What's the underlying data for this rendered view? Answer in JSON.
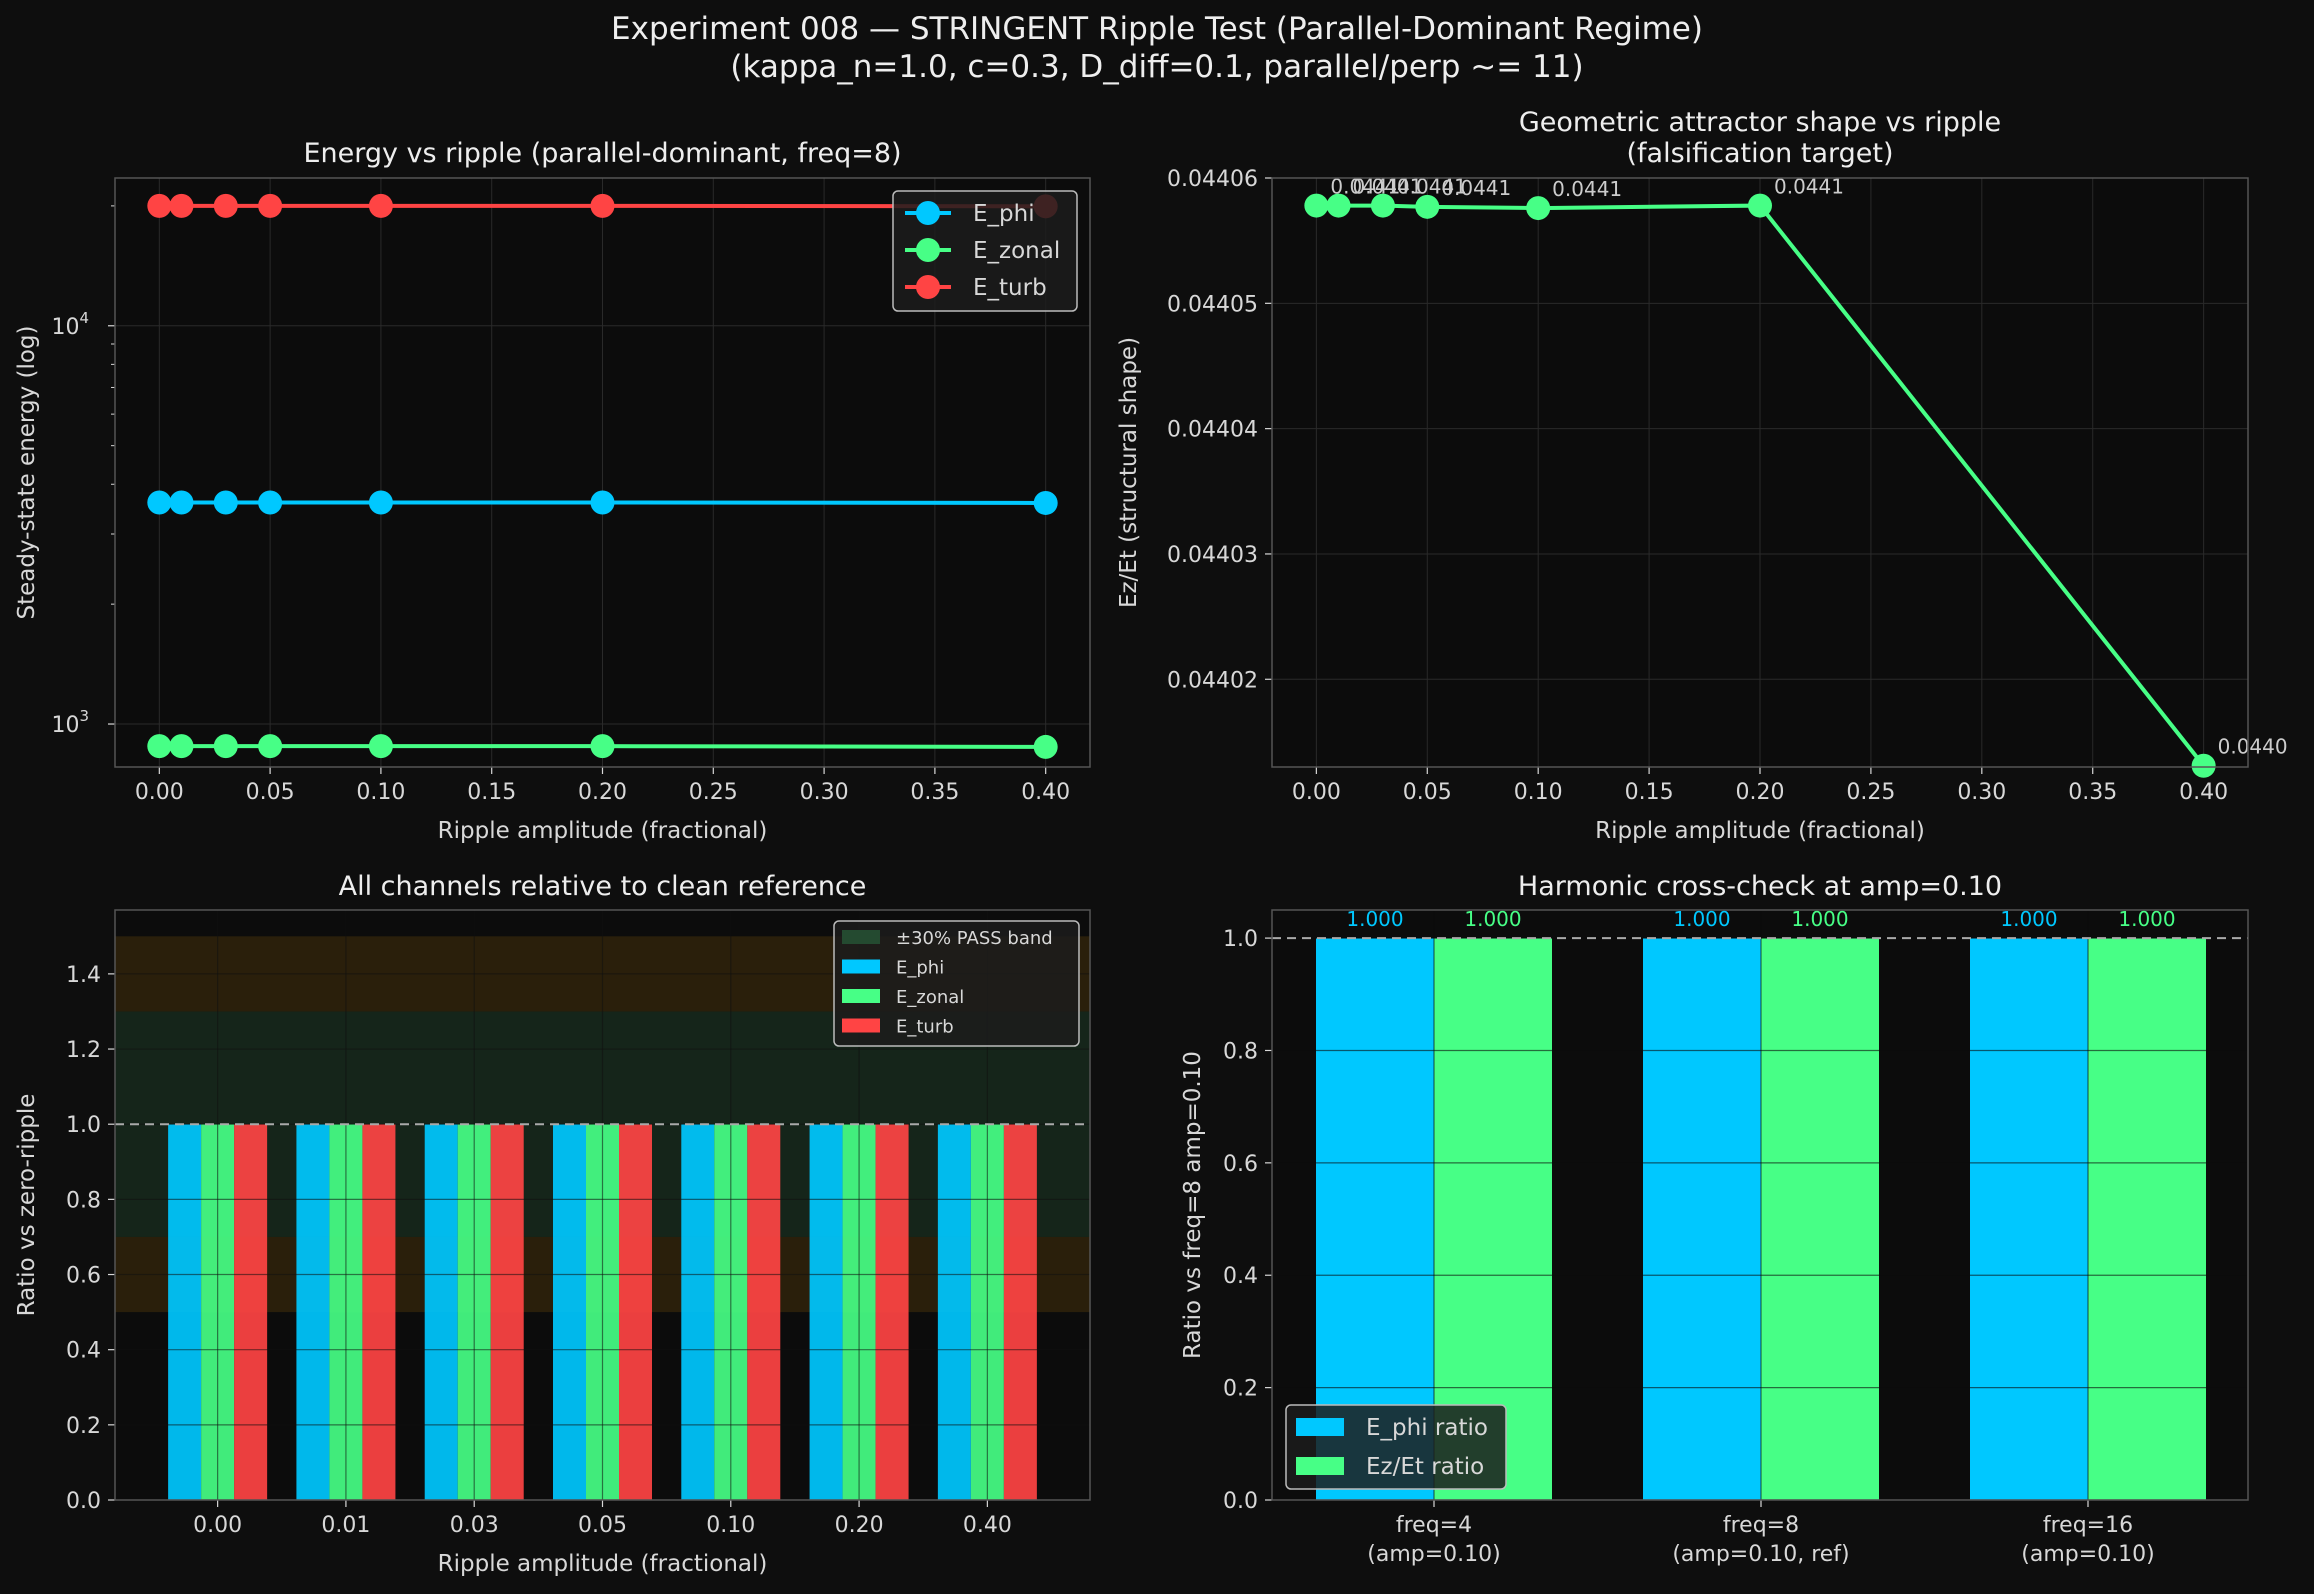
{
  "figure": {
    "title_line1": "Experiment 008 — STRINGENT Ripple Test (Parallel-Dominant Regime)",
    "title_line2": "(kappa_n=1.0, c=0.3, D_diff=0.1, parallel/perp ~= 11)",
    "background": "#0e0e0e",
    "axes_background": "#0c0c0c",
    "colors": {
      "phi": "#00c8ff",
      "zonal": "#47ff86",
      "turb": "#ff4444",
      "ref_line": "#aaaaaa"
    }
  },
  "chart_data": [
    {
      "id": "energy",
      "type": "line",
      "title": "Energy vs ripple (parallel-dominant, freq=8)",
      "xlabel": "Ripple amplitude (fractional)",
      "ylabel": "Steady-state energy (log)",
      "yscale": "log",
      "xlim": [
        -0.02,
        0.42
      ],
      "ylim": [
        780,
        23500
      ],
      "xticks": [
        "0.00",
        "0.05",
        "0.10",
        "0.15",
        "0.20",
        "0.25",
        "0.30",
        "0.35",
        "0.40"
      ],
      "yticks": [
        {
          "base": "10",
          "exp": "3",
          "value": 1000
        },
        {
          "base": "10",
          "exp": "4",
          "value": 10000
        }
      ],
      "x": [
        0.0,
        0.01,
        0.03,
        0.05,
        0.1,
        0.2,
        0.4
      ],
      "series": [
        {
          "name": "E_phi",
          "color": "#00c8ff",
          "values": [
            3600,
            3600,
            3600,
            3600,
            3600,
            3600,
            3590
          ]
        },
        {
          "name": "E_zonal",
          "color": "#47ff86",
          "values": [
            880,
            880,
            880,
            880,
            880,
            880,
            876
          ]
        },
        {
          "name": "E_turb",
          "color": "#ff4444",
          "values": [
            20000,
            20000,
            20000,
            20000,
            20000,
            20000,
            19950
          ]
        }
      ],
      "legend": "top-right",
      "grid": true
    },
    {
      "id": "shape",
      "type": "line",
      "title_line1": "Geometric attractor shape vs ripple",
      "title_line2": "(falsification target)",
      "xlabel": "Ripple amplitude (fractional)",
      "ylabel": "Ez/Et  (structural shape)",
      "xlim": [
        -0.02,
        0.42
      ],
      "ylim": [
        0.044013,
        0.04406
      ],
      "xticks": [
        "0.00",
        "0.05",
        "0.10",
        "0.15",
        "0.20",
        "0.25",
        "0.30",
        "0.35",
        "0.40"
      ],
      "yticks": [
        "0.04402",
        "0.04403",
        "0.04404",
        "0.04405",
        "0.04406"
      ],
      "x": [
        0.0,
        0.01,
        0.03,
        0.05,
        0.1,
        0.2,
        0.4
      ],
      "values": [
        0.0440578,
        0.0440578,
        0.0440578,
        0.0440577,
        0.0440576,
        0.0440578,
        0.0440131
      ],
      "point_labels": [
        "0.0441",
        "0.0441",
        "0.0441",
        "0.0441",
        "0.0441",
        "0.0441",
        "0.0440"
      ],
      "color": "#47ff86",
      "grid": true
    },
    {
      "id": "relative",
      "type": "bar",
      "title": "All channels relative to clean reference",
      "xlabel": "Ripple amplitude (fractional)",
      "ylabel": "Ratio vs zero-ripple",
      "ylim": [
        0,
        1.57
      ],
      "yticks": [
        "0.0",
        "0.2",
        "0.4",
        "0.6",
        "0.8",
        "1.0",
        "1.2",
        "1.4"
      ],
      "categories": [
        "0.00",
        "0.01",
        "0.03",
        "0.05",
        "0.10",
        "0.20",
        "0.40"
      ],
      "series": [
        {
          "name": "E_phi",
          "color": "#00c8ff",
          "values": [
            1,
            1,
            1,
            1,
            1,
            1,
            1
          ]
        },
        {
          "name": "E_zonal",
          "color": "#47ff86",
          "values": [
            1,
            1,
            1,
            1,
            1,
            1,
            1
          ]
        },
        {
          "name": "E_turb",
          "color": "#ff4444",
          "values": [
            1,
            1,
            1,
            1,
            1,
            1,
            1
          ]
        }
      ],
      "pass_band": {
        "label": "±30% PASS band",
        "range": [
          0.7,
          1.3
        ],
        "color": "#1e3a26"
      },
      "warn_bands": [
        [
          0.5,
          0.7
        ],
        [
          1.3,
          1.5
        ]
      ],
      "reference_line": 1.0,
      "legend": "top-right",
      "grid": true
    },
    {
      "id": "harmonic",
      "type": "bar",
      "title": "Harmonic cross-check at amp=0.10",
      "ylabel": "Ratio vs freq=8 amp=0.10",
      "ylim": [
        0,
        1.05
      ],
      "yticks": [
        "0.0",
        "0.2",
        "0.4",
        "0.6",
        "0.8",
        "1.0"
      ],
      "categories": [
        {
          "line1": "freq=4",
          "line2": "(amp=0.10)"
        },
        {
          "line1": "freq=8",
          "line2": "(amp=0.10, ref)"
        },
        {
          "line1": "freq=16",
          "line2": "(amp=0.10)"
        }
      ],
      "series": [
        {
          "name": "E_phi ratio",
          "color": "#00c8ff",
          "values": [
            1.0,
            1.0,
            1.0
          ],
          "labels": [
            "1.000",
            "1.000",
            "1.000"
          ]
        },
        {
          "name": "Ez/Et ratio",
          "color": "#47ff86",
          "values": [
            1.0,
            1.0,
            1.0
          ],
          "labels": [
            "1.000",
            "1.000",
            "1.000"
          ]
        }
      ],
      "reference_line": 1.0,
      "legend": "bottom-left",
      "grid": true
    }
  ]
}
